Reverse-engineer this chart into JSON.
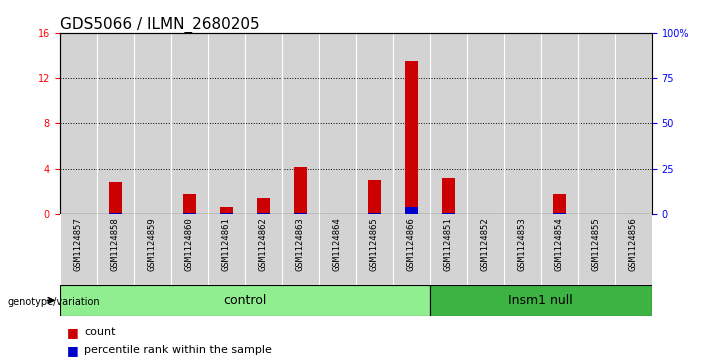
{
  "title": "GDS5066 / ILMN_2680205",
  "samples": [
    "GSM1124857",
    "GSM1124858",
    "GSM1124859",
    "GSM1124860",
    "GSM1124861",
    "GSM1124862",
    "GSM1124863",
    "GSM1124864",
    "GSM1124865",
    "GSM1124866",
    "GSM1124851",
    "GSM1124852",
    "GSM1124853",
    "GSM1124854",
    "GSM1124855",
    "GSM1124856"
  ],
  "counts": [
    0.0,
    2.8,
    0.0,
    1.8,
    0.6,
    1.4,
    4.2,
    0.0,
    3.0,
    13.5,
    3.2,
    0.0,
    0.0,
    1.8,
    0.0,
    0.0
  ],
  "percentile_ranks": [
    0.0,
    0.8,
    0.0,
    0.8,
    0.8,
    0.8,
    0.8,
    0.0,
    0.8,
    3.9,
    0.8,
    0.0,
    0.0,
    0.8,
    0.0,
    0.0
  ],
  "control_indices": [
    0,
    1,
    2,
    3,
    4,
    5,
    6,
    7,
    8,
    9
  ],
  "insm1_indices": [
    10,
    11,
    12,
    13,
    14,
    15
  ],
  "control_color": "#90EE90",
  "insm1_color": "#3CB343",
  "ylim_left": [
    0,
    16
  ],
  "ylim_right": [
    0,
    100
  ],
  "yticks_left": [
    0,
    4,
    8,
    12,
    16
  ],
  "yticks_right": [
    0,
    25,
    50,
    75,
    100
  ],
  "ytick_labels_right": [
    "0",
    "25",
    "50",
    "75",
    "100%"
  ],
  "bar_color": "#CC0000",
  "marker_color": "#0000CC",
  "cell_background": "#D3D3D3",
  "title_fontsize": 11,
  "tick_fontsize": 7,
  "sample_fontsize": 6.5,
  "group_fontsize": 9,
  "bar_width": 0.35
}
